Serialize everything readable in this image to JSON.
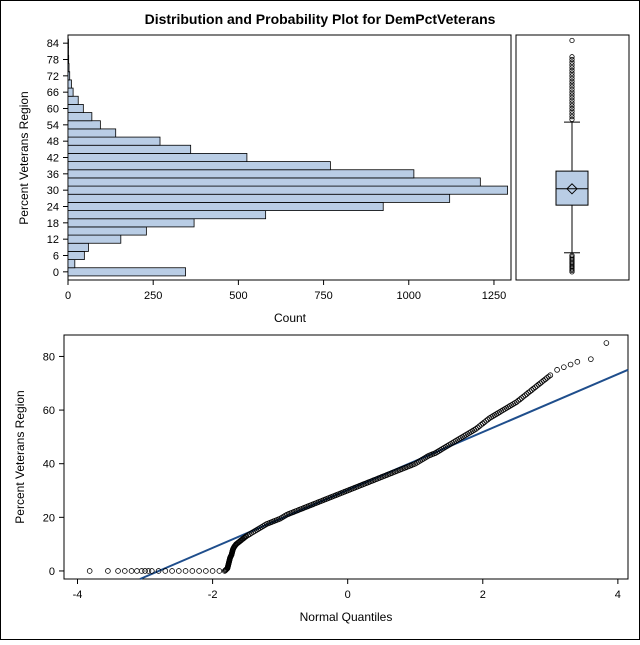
{
  "title": "Distribution and Probability Plot for DemPctVeterans",
  "colors": {
    "bar_fill": "#b9cde5",
    "box_fill": "#b9cde5",
    "outline": "#000000",
    "ref_line": "#1f4e8c",
    "background": "#ffffff"
  },
  "chart_data": [
    {
      "type": "bar",
      "orientation": "horizontal",
      "role": "histogram",
      "xlabel": "Count",
      "ylabel": "Percent Veterans Region",
      "xlim": [
        0,
        1300
      ],
      "xticks": [
        0,
        250,
        500,
        750,
        1000,
        1250
      ],
      "ylim": [
        -3,
        87
      ],
      "yticks": [
        0,
        6,
        12,
        18,
        24,
        30,
        36,
        42,
        48,
        54,
        60,
        66,
        72,
        78,
        84
      ],
      "bin_width": 3,
      "bin_centers": [
        0,
        3,
        6,
        9,
        12,
        15,
        18,
        21,
        24,
        27,
        30,
        33,
        36,
        39,
        42,
        45,
        48,
        51,
        54,
        57,
        60,
        63,
        66,
        69,
        72,
        75,
        78,
        81,
        84
      ],
      "values": [
        345,
        20,
        48,
        60,
        155,
        230,
        370,
        580,
        925,
        1120,
        1290,
        1210,
        1015,
        770,
        525,
        360,
        270,
        140,
        95,
        70,
        45,
        30,
        15,
        10,
        5,
        3,
        2,
        1,
        1
      ],
      "grid": false
    },
    {
      "type": "box",
      "role": "boxplot",
      "ylim": [
        -3,
        87
      ],
      "q1": 24.5,
      "median": 30.5,
      "q3": 37,
      "mean": 30.5,
      "whisker_low": 7,
      "whisker_high": 55,
      "outliers": [
        0,
        0.5,
        1,
        1.5,
        2,
        2.5,
        3,
        3.5,
        4,
        4.5,
        5,
        5.5,
        6,
        56,
        57,
        58,
        59,
        60,
        61,
        62,
        63,
        64,
        65,
        66,
        67,
        68,
        69,
        70,
        71,
        72,
        73,
        74,
        75,
        76,
        77,
        78,
        79,
        85
      ]
    },
    {
      "type": "scatter",
      "role": "normal-probability-plot",
      "xlabel": "Normal Quantiles",
      "ylabel": "Percent Veterans Region",
      "xlim": [
        -4.2,
        4.15
      ],
      "xticks": [
        -4,
        -2,
        0,
        2,
        4
      ],
      "ylim": [
        -3,
        88
      ],
      "yticks": [
        0,
        20,
        40,
        60,
        80
      ],
      "reference_line": {
        "intercept": 30.2,
        "slope": 10.8
      },
      "sample_points": [
        [
          -3.82,
          0
        ],
        [
          -3.55,
          0
        ],
        [
          -3.4,
          0
        ],
        [
          -3.3,
          0
        ],
        [
          -3.2,
          0
        ],
        [
          -3.12,
          0
        ],
        [
          -3.05,
          0
        ],
        [
          -3.0,
          0
        ],
        [
          -2.95,
          0
        ],
        [
          -2.9,
          0
        ],
        [
          -2.8,
          0
        ],
        [
          -2.7,
          0
        ],
        [
          -2.6,
          0
        ],
        [
          -2.5,
          0
        ],
        [
          -2.4,
          0
        ],
        [
          -2.3,
          0
        ],
        [
          -2.2,
          0
        ],
        [
          -2.1,
          0
        ],
        [
          -2.0,
          0
        ],
        [
          -1.9,
          0
        ],
        [
          -1.82,
          0
        ],
        [
          -1.78,
          1
        ],
        [
          -1.77,
          2
        ],
        [
          -1.76,
          3
        ],
        [
          -1.75,
          4
        ],
        [
          -1.74,
          5
        ],
        [
          -1.72,
          6
        ],
        [
          -1.71,
          7
        ],
        [
          -1.7,
          8
        ],
        [
          -1.68,
          9
        ],
        [
          -1.65,
          10
        ],
        [
          -1.6,
          11
        ],
        [
          -1.55,
          12
        ],
        [
          -1.5,
          13
        ],
        [
          -1.4,
          14.5
        ],
        [
          -1.3,
          16
        ],
        [
          -1.2,
          17.5
        ],
        [
          -1.1,
          18.5
        ],
        [
          -1.0,
          19.5
        ],
        [
          -0.9,
          21
        ],
        [
          -0.8,
          22
        ],
        [
          -0.7,
          23
        ],
        [
          -0.6,
          24
        ],
        [
          -0.5,
          25
        ],
        [
          -0.4,
          26
        ],
        [
          -0.3,
          27
        ],
        [
          -0.2,
          28
        ],
        [
          -0.1,
          29
        ],
        [
          0.0,
          30
        ],
        [
          0.1,
          31
        ],
        [
          0.2,
          32
        ],
        [
          0.3,
          33
        ],
        [
          0.4,
          34
        ],
        [
          0.5,
          35
        ],
        [
          0.6,
          36
        ],
        [
          0.7,
          37
        ],
        [
          0.8,
          38
        ],
        [
          0.9,
          39
        ],
        [
          1.0,
          40
        ],
        [
          1.1,
          41.5
        ],
        [
          1.2,
          43
        ],
        [
          1.3,
          44
        ],
        [
          1.4,
          45.5
        ],
        [
          1.5,
          47
        ],
        [
          1.6,
          48.5
        ],
        [
          1.7,
          50
        ],
        [
          1.8,
          51.5
        ],
        [
          1.9,
          53
        ],
        [
          2.0,
          55
        ],
        [
          2.1,
          57
        ],
        [
          2.2,
          58.5
        ],
        [
          2.3,
          60
        ],
        [
          2.4,
          61.5
        ],
        [
          2.5,
          63
        ],
        [
          2.6,
          65
        ],
        [
          2.7,
          67
        ],
        [
          2.8,
          69
        ],
        [
          2.9,
          71
        ],
        [
          3.0,
          73
        ],
        [
          3.1,
          75
        ],
        [
          3.2,
          76
        ],
        [
          3.3,
          77
        ],
        [
          3.4,
          78
        ],
        [
          3.6,
          79
        ],
        [
          3.83,
          85
        ]
      ]
    }
  ]
}
